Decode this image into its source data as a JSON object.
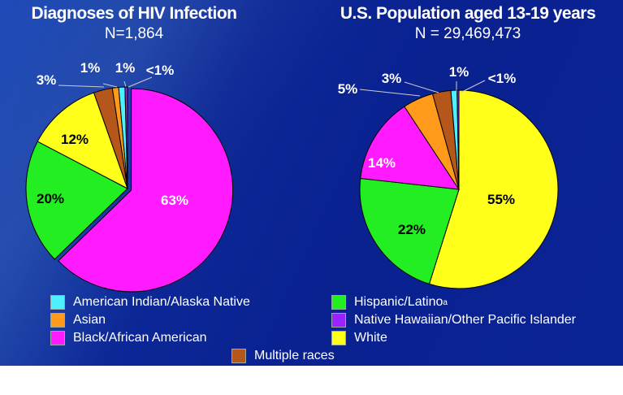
{
  "chart_data": [
    {
      "type": "pie",
      "title": "Diagnoses of HIV Infection",
      "subtitle": "N=1,864",
      "slices": [
        {
          "name": "Black/African American",
          "value": 63,
          "label": "63%",
          "color": "#ff1aff"
        },
        {
          "name": "Hispanic/Latino",
          "value": 20,
          "label": "20%",
          "color": "#22ee22"
        },
        {
          "name": "White",
          "value": 12,
          "label": "12%",
          "color": "#ffff1a"
        },
        {
          "name": "Multiple races",
          "value": 3,
          "label": "3%",
          "color": "#b5561a"
        },
        {
          "name": "Asian",
          "value": 1,
          "label": "1%",
          "color": "#ff9a1a"
        },
        {
          "name": "American Indian/Alaska Native",
          "value": 1,
          "label": "1%",
          "color": "#4cf0ff"
        },
        {
          "name": "Native Hawaiian/Other Pacific Islander",
          "value": 0.4,
          "label": "<1%",
          "color": "#9922ff"
        }
      ]
    },
    {
      "type": "pie",
      "title": "U.S. Population aged 13-19 years",
      "subtitle": "N = 29,469,473",
      "slices": [
        {
          "name": "White",
          "value": 55,
          "label": "55%",
          "color": "#ffff1a"
        },
        {
          "name": "Hispanic/Latino",
          "value": 22,
          "label": "22%",
          "color": "#22ee22"
        },
        {
          "name": "Black/African American",
          "value": 14,
          "label": "14%",
          "color": "#ff1aff"
        },
        {
          "name": "Asian",
          "value": 5,
          "label": "5%",
          "color": "#ff9a1a"
        },
        {
          "name": "Multiple races",
          "value": 3,
          "label": "3%",
          "color": "#b5561a"
        },
        {
          "name": "American Indian/Alaska Native",
          "value": 1,
          "label": "1%",
          "color": "#4cf0ff"
        },
        {
          "name": "Native Hawaiian/Other Pacific Islander",
          "value": 0.3,
          "label": "<1%",
          "color": "#9922ff"
        }
      ]
    }
  ],
  "legend": [
    {
      "label": "American Indian/Alaska Native",
      "color": "#4cf0ff"
    },
    {
      "label": "Asian",
      "color": "#ff9a1a"
    },
    {
      "label": "Black/African American",
      "color": "#ff1aff"
    },
    {
      "label": "Hispanic/Latino",
      "sup": "a",
      "color": "#22ee22"
    },
    {
      "label": "Native Hawaiian/Other Pacific Islander",
      "color": "#9922ff"
    },
    {
      "label": "White",
      "color": "#ffff1a"
    },
    {
      "label": "Multiple races",
      "color": "#b5561a"
    }
  ]
}
